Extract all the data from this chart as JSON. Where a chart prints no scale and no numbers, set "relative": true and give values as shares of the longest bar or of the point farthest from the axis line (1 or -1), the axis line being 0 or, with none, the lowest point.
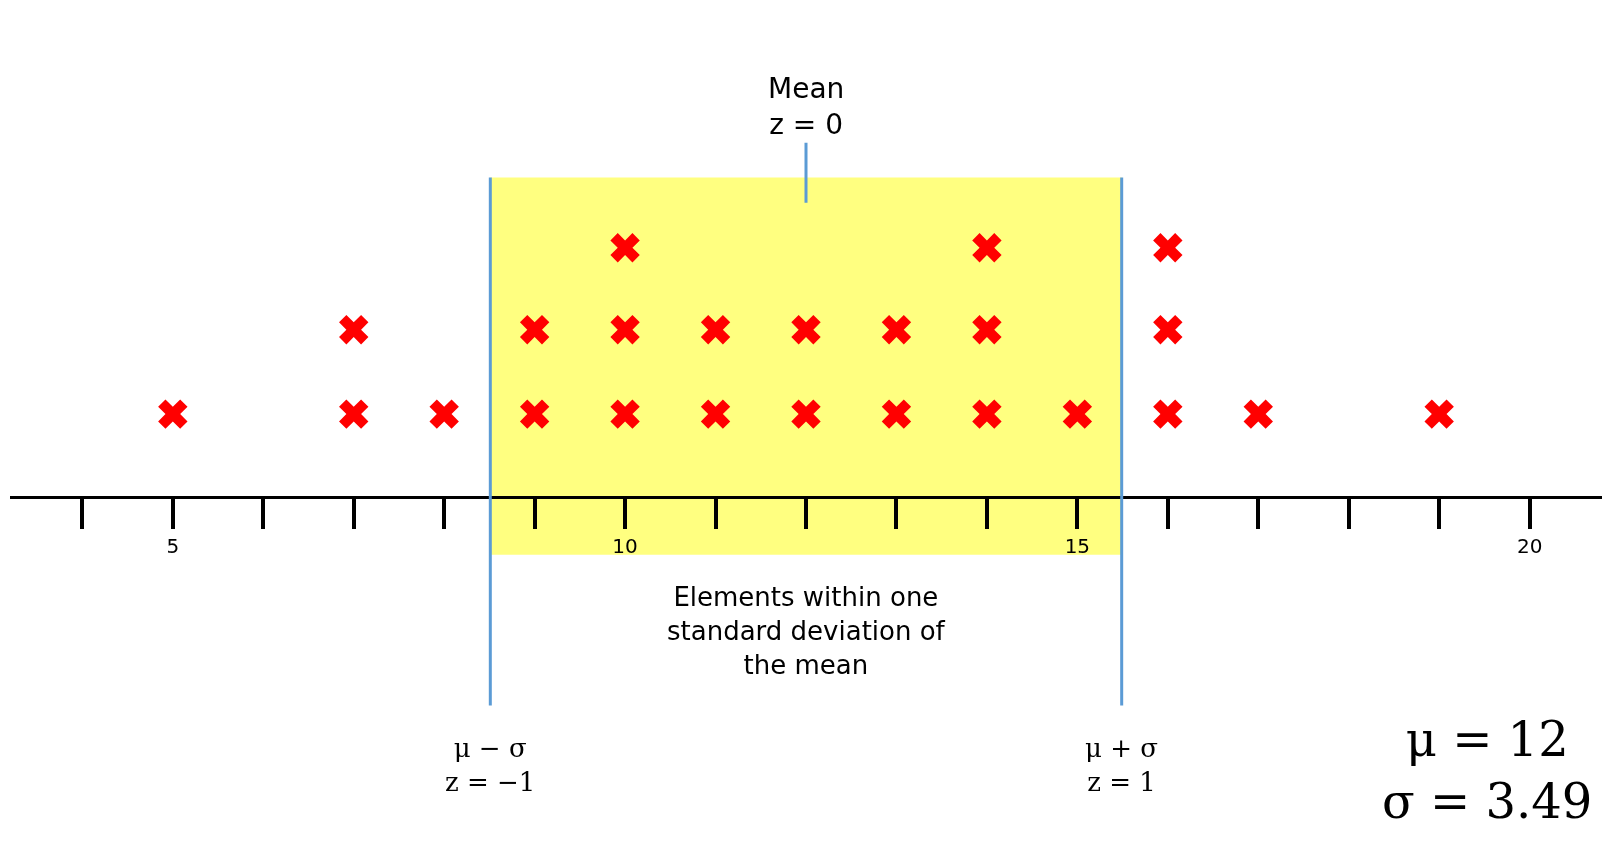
{
  "chart_data": {
    "type": "scatter",
    "relative": true,
    "marker": "cross",
    "x": [
      5,
      7,
      7,
      8,
      9,
      9,
      10,
      10,
      10,
      11,
      11,
      12,
      12,
      13,
      13,
      14,
      14,
      14,
      15,
      16,
      16,
      16,
      17,
      19
    ],
    "series": [
      {
        "color": "#ff0000",
        "values": [
          0.33,
          0.33,
          0.67,
          0.33,
          0.33,
          0.67,
          0.33,
          0.67,
          1,
          0.33,
          0.67,
          0.33,
          0.67,
          0.33,
          0.67,
          0.33,
          0.67,
          1,
          0.33,
          0.33,
          0.67,
          1,
          0.33,
          0.33
        ]
      }
    ],
    "xlim": [
      3.2,
      20.8
    ],
    "xticks": [
      5,
      10,
      15,
      20
    ],
    "bands": [
      {
        "axis": "x",
        "from": 8.51,
        "to": 15.49,
        "label": "Elements within one\nstandard deviation of\nthe mean",
        "color": "#ffff80"
      }
    ],
    "ref_lines": [
      {
        "axis": "x",
        "value": 8.51,
        "color": "#5b9bd5"
      },
      {
        "axis": "x",
        "value": 15.49,
        "color": "#5b9bd5"
      }
    ],
    "annotations": [
      {
        "text": "Mean\nz = 0",
        "x": 12
      },
      "μ − σ\nz = −1",
      "μ + σ\nz = 1",
      "μ = 12\nσ = 3.49"
    ]
  }
}
